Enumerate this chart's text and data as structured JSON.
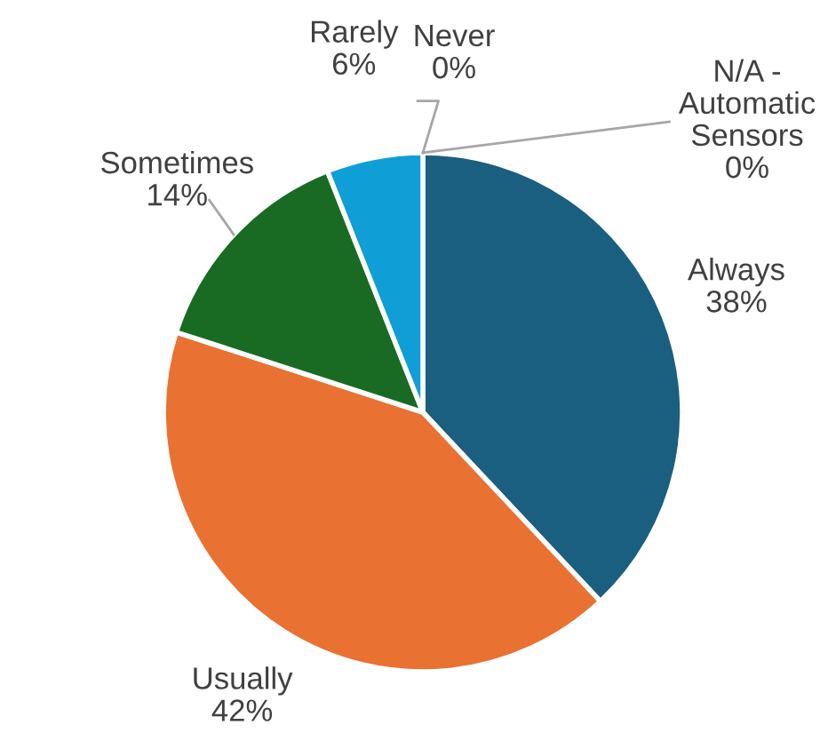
{
  "chart_data": {
    "type": "pie",
    "categories": [
      "Always",
      "Usually",
      "Sometimes",
      "Rarely",
      "Never",
      "N/A - Automatic Sensors"
    ],
    "values": [
      38,
      42,
      14,
      6,
      0,
      0
    ],
    "value_labels": [
      "38%",
      "42%",
      "14%",
      "6%",
      "0%",
      "0%"
    ],
    "colors": [
      "#1a5e80",
      "#e97132",
      "#196b24",
      "#0f9ed5",
      "#a02b93",
      "#4ea72e"
    ]
  }
}
